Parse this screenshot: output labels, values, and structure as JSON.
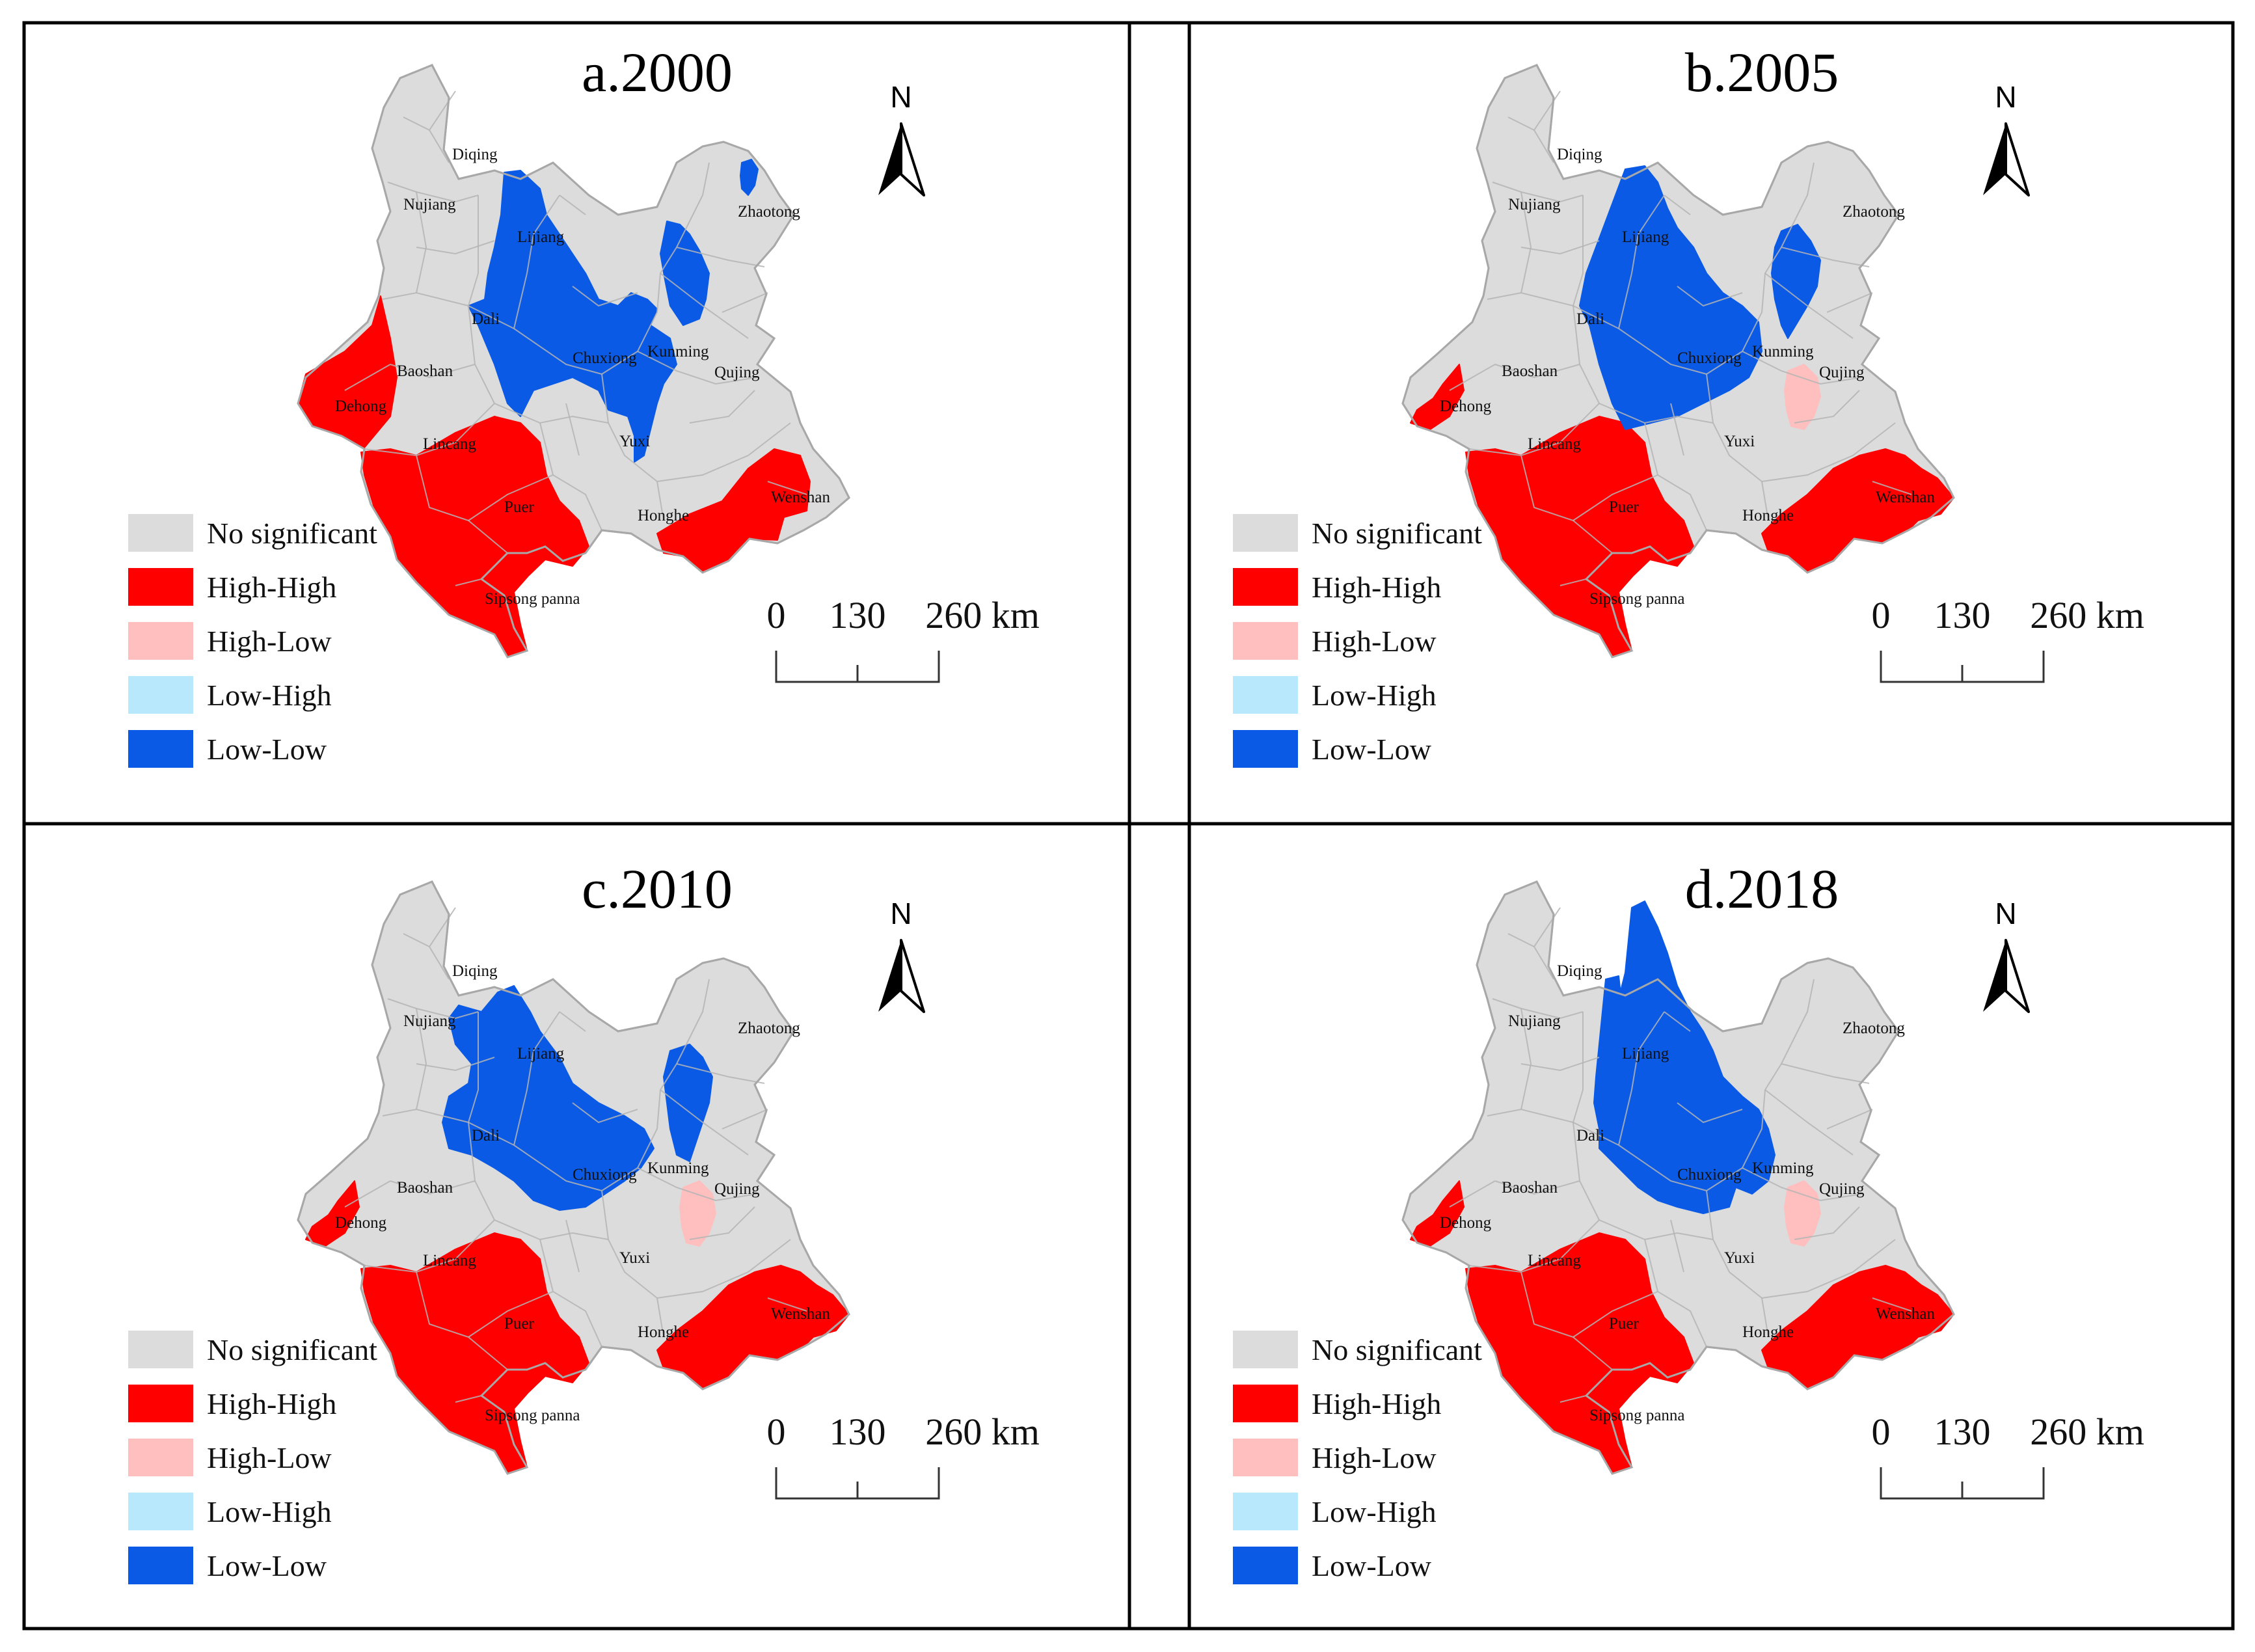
{
  "colors": {
    "no_significant": "#dcdcdc",
    "high_high": "#ff0000",
    "high_low": "#ffbfbf",
    "low_high": "#b8e8fb",
    "low_low": "#0a5ae6",
    "boundary": "#b4b4b4"
  },
  "north_label": "N",
  "scale": {
    "labels": [
      "0",
      "130",
      "260 km"
    ]
  },
  "legend": [
    {
      "key": "no_significant",
      "label": "No significant"
    },
    {
      "key": "high_high",
      "label": "High-High"
    },
    {
      "key": "high_low",
      "label": "High-Low"
    },
    {
      "key": "low_high",
      "label": "Low-High"
    },
    {
      "key": "low_low",
      "label": "Low-Low"
    }
  ],
  "cities": [
    {
      "id": "diqing",
      "name": "Diqing"
    },
    {
      "id": "nujiang",
      "name": "Nujiang"
    },
    {
      "id": "lijiang",
      "name": "Lijiang"
    },
    {
      "id": "zhaotong",
      "name": "Zhaotong"
    },
    {
      "id": "dali",
      "name": "Dali"
    },
    {
      "id": "baoshan",
      "name": "Baoshan"
    },
    {
      "id": "dehong",
      "name": "Dehong"
    },
    {
      "id": "chuxiong",
      "name": "Chuxiong"
    },
    {
      "id": "kunming",
      "name": "Kunming"
    },
    {
      "id": "qujing",
      "name": "Qujing"
    },
    {
      "id": "lincang",
      "name": "Lincang"
    },
    {
      "id": "yuxi",
      "name": "Yuxi"
    },
    {
      "id": "puer",
      "name": "Puer"
    },
    {
      "id": "honghe",
      "name": "Honghe"
    },
    {
      "id": "wenshan",
      "name": "Wenshan"
    },
    {
      "id": "xishuangbanna",
      "name": "Sipsong panna"
    }
  ],
  "panels": [
    {
      "title": "a.2000",
      "clusters": {
        "high_high": [
          "dehong",
          "lincang",
          "puer",
          "xishuangbanna",
          "wenshan"
        ],
        "high_low": [],
        "low_high": [],
        "low_low": [
          "lijiang",
          "dali",
          "chuxiong",
          "kunming",
          "zhaotong"
        ]
      }
    },
    {
      "title": "b.2005",
      "clusters": {
        "high_high": [
          "dehong",
          "lincang",
          "puer",
          "xishuangbanna",
          "wenshan"
        ],
        "high_low": [
          "qujing"
        ],
        "low_high": [],
        "low_low": [
          "lijiang",
          "dali",
          "chuxiong",
          "zhaotong"
        ]
      }
    },
    {
      "title": "c.2010",
      "clusters": {
        "high_high": [
          "dehong",
          "lincang",
          "puer",
          "xishuangbanna",
          "wenshan"
        ],
        "high_low": [
          "qujing"
        ],
        "low_high": [],
        "low_low": [
          "lijiang",
          "dali",
          "chuxiong",
          "zhaotong"
        ]
      }
    },
    {
      "title": "d.2018",
      "clusters": {
        "high_high": [
          "dehong",
          "lincang",
          "puer",
          "xishuangbanna",
          "wenshan"
        ],
        "high_low": [
          "qujing"
        ],
        "low_high": [],
        "low_low": [
          "diqing",
          "nujiang",
          "lijiang",
          "dali",
          "chuxiong"
        ]
      }
    }
  ]
}
